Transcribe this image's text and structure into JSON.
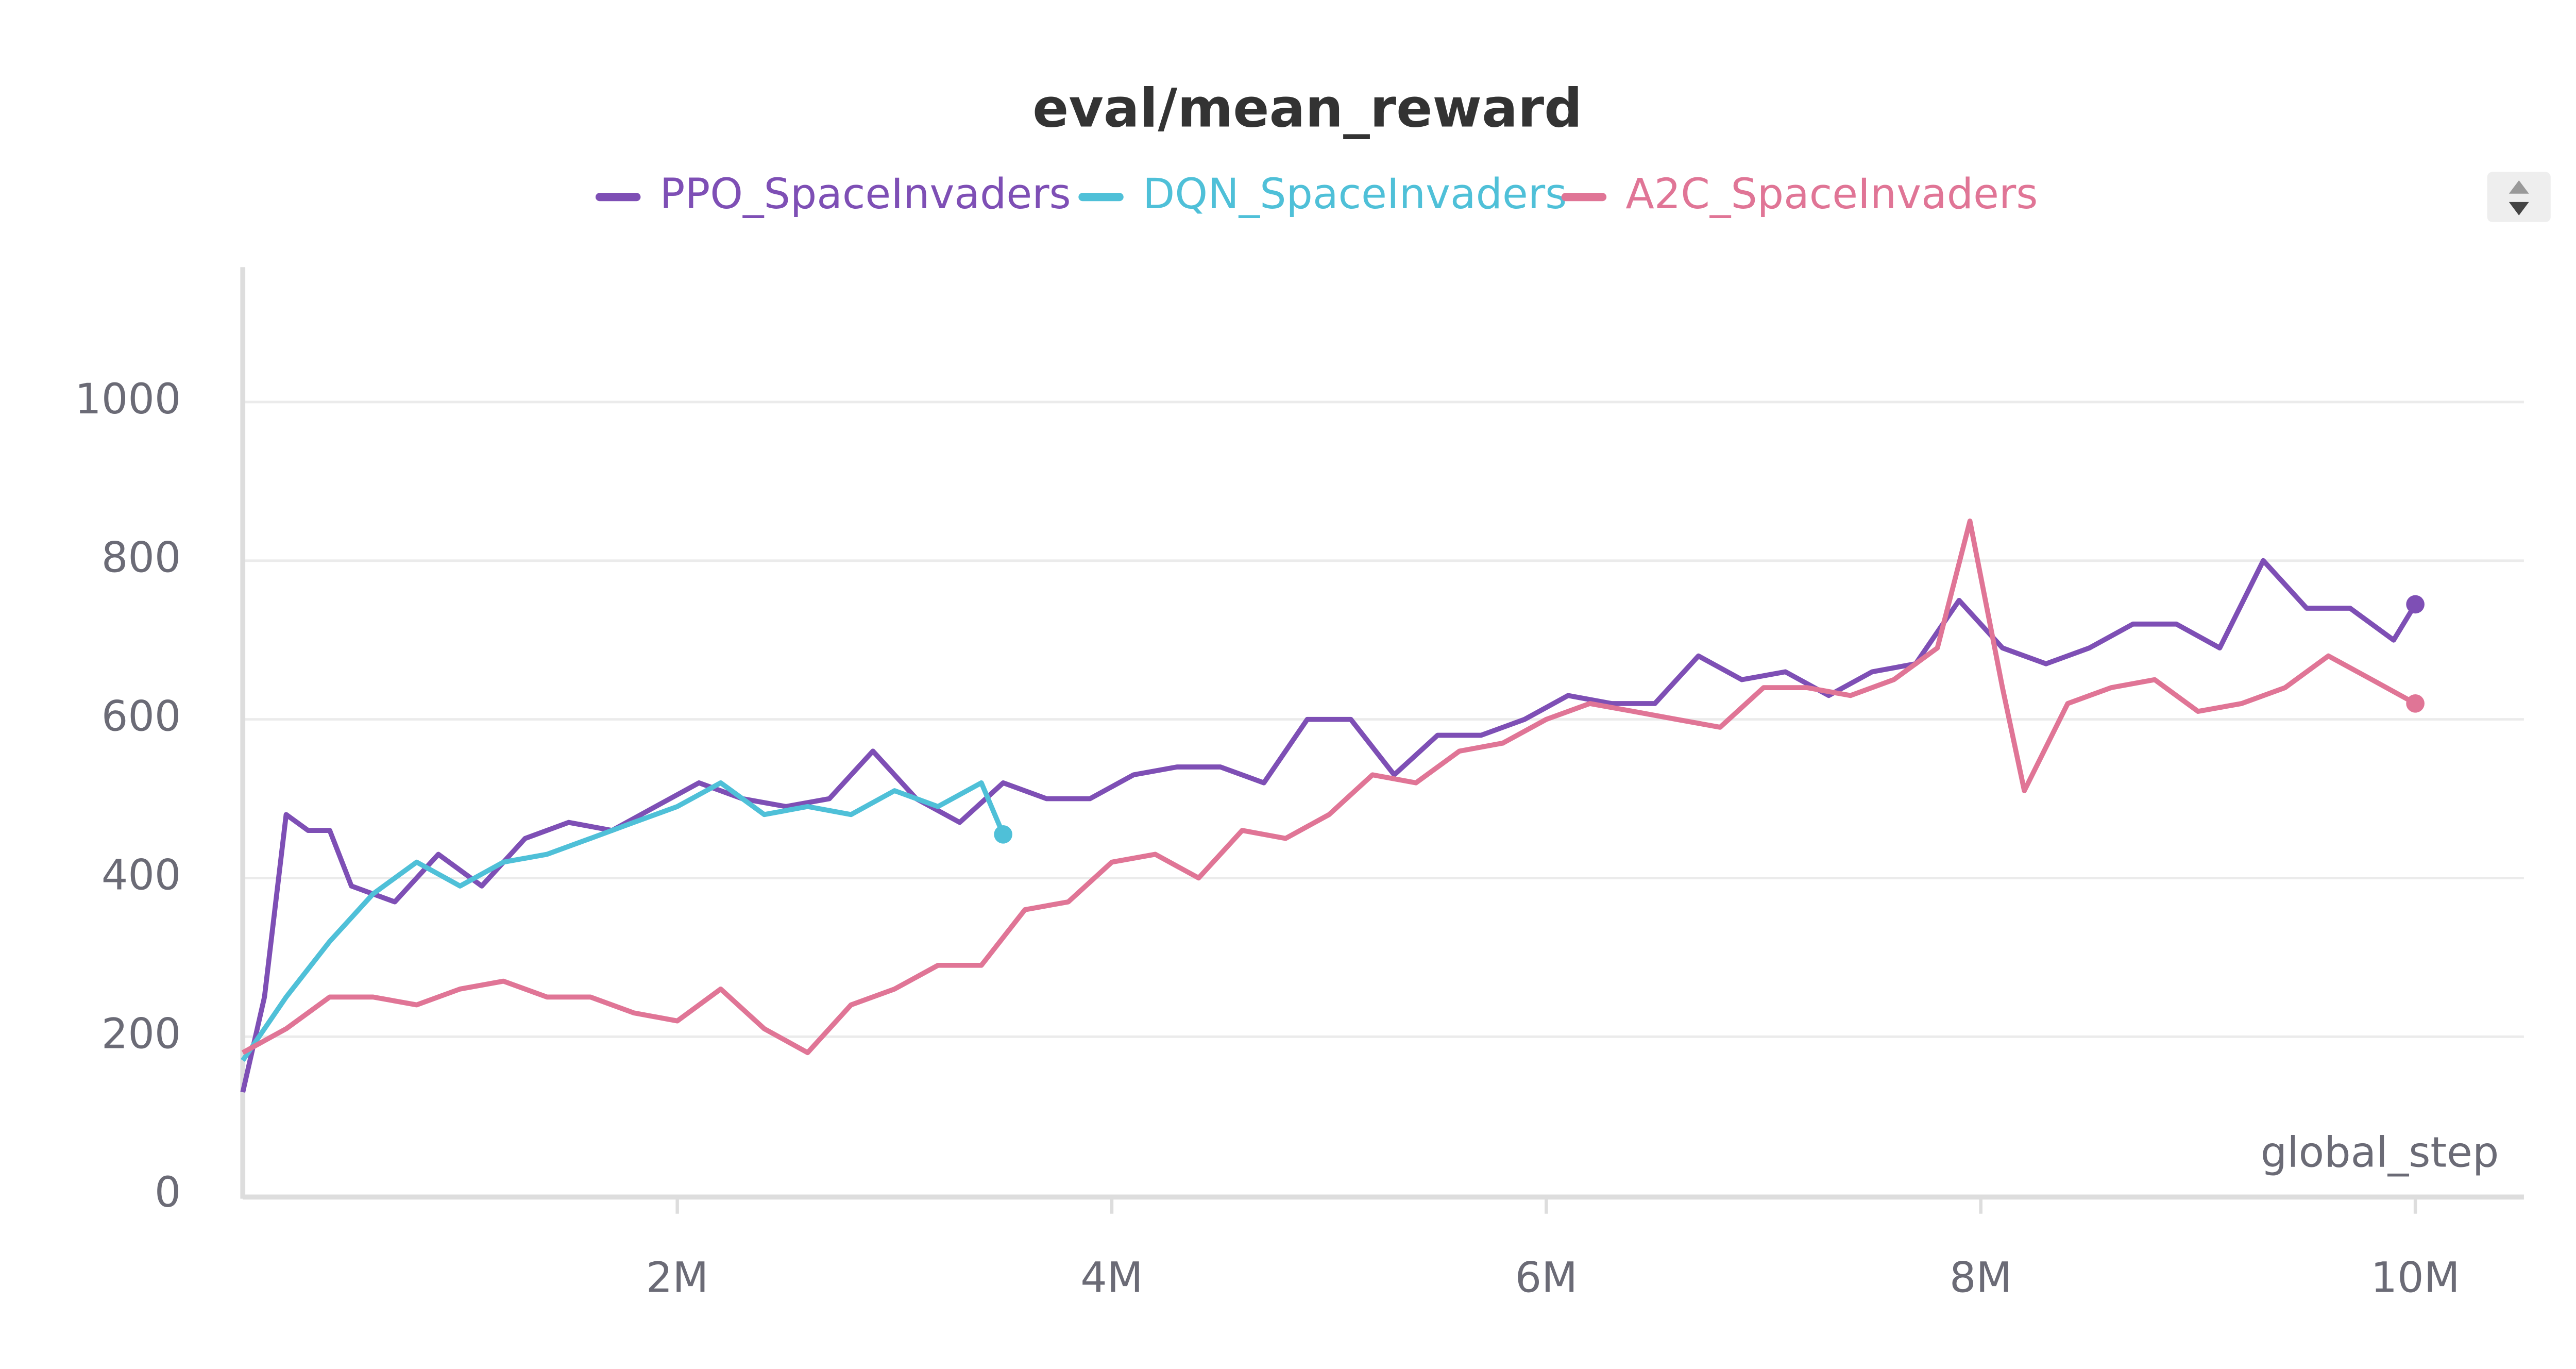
{
  "chart_data": {
    "type": "line",
    "title": "eval/mean_reward",
    "xlabel": "global_step",
    "xlim": [
      0,
      10500000
    ],
    "ylim": [
      0,
      1170
    ],
    "xticks": [
      {
        "value": 2000000,
        "label": "2M"
      },
      {
        "value": 4000000,
        "label": "4M"
      },
      {
        "value": 6000000,
        "label": "6M"
      },
      {
        "value": 8000000,
        "label": "8M"
      },
      {
        "value": 10000000,
        "label": "10M"
      }
    ],
    "yticks": [
      0,
      200,
      400,
      600,
      800,
      1000
    ],
    "grid": true,
    "series": [
      {
        "name": "PPO_SpaceInvaders",
        "color": "#7e4fb5",
        "x": [
          0,
          100000,
          200000,
          300000,
          400000,
          500000,
          700000,
          900000,
          1100000,
          1300000,
          1500000,
          1700000,
          1900000,
          2100000,
          2300000,
          2500000,
          2700000,
          2900000,
          3100000,
          3300000,
          3500000,
          3700000,
          3900000,
          4100000,
          4300000,
          4500000,
          4700000,
          4900000,
          5100000,
          5300000,
          5500000,
          5700000,
          5900000,
          6100000,
          6300000,
          6500000,
          6700000,
          6900000,
          7100000,
          7300000,
          7500000,
          7700000,
          7900000,
          8100000,
          8300000,
          8500000,
          8700000,
          8900000,
          9100000,
          9300000,
          9500000,
          9700000,
          9900000,
          10000000
        ],
        "values": [
          130,
          250,
          480,
          460,
          460,
          390,
          370,
          430,
          390,
          450,
          470,
          460,
          490,
          520,
          500,
          490,
          500,
          560,
          500,
          470,
          520,
          500,
          500,
          530,
          540,
          540,
          520,
          600,
          600,
          530,
          580,
          580,
          600,
          630,
          620,
          620,
          680,
          650,
          660,
          630,
          660,
          670,
          750,
          690,
          670,
          690,
          720,
          720,
          690,
          800,
          740,
          740,
          700,
          745
        ]
      },
      {
        "name": "DQN_SpaceInvaders",
        "color": "#4fc0d8",
        "x": [
          0,
          200000,
          400000,
          600000,
          800000,
          1000000,
          1200000,
          1400000,
          1600000,
          1800000,
          2000000,
          2200000,
          2400000,
          2600000,
          2800000,
          3000000,
          3200000,
          3400000,
          3500000
        ],
        "values": [
          170,
          250,
          320,
          380,
          420,
          390,
          420,
          430,
          450,
          470,
          490,
          520,
          480,
          490,
          480,
          510,
          490,
          520,
          455
        ]
      },
      {
        "name": "A2C_SpaceInvaders",
        "color": "#e07596",
        "x": [
          0,
          200000,
          400000,
          600000,
          800000,
          1000000,
          1200000,
          1400000,
          1600000,
          1800000,
          2000000,
          2200000,
          2400000,
          2600000,
          2800000,
          3000000,
          3200000,
          3400000,
          3600000,
          3800000,
          4000000,
          4200000,
          4400000,
          4600000,
          4800000,
          5000000,
          5200000,
          5400000,
          5600000,
          5800000,
          6000000,
          6200000,
          6400000,
          6600000,
          6800000,
          7000000,
          7200000,
          7400000,
          7600000,
          7800000,
          7950000,
          8100000,
          8200000,
          8400000,
          8600000,
          8800000,
          9000000,
          9200000,
          9400000,
          9600000,
          9800000,
          10000000
        ],
        "values": [
          180,
          210,
          250,
          250,
          240,
          260,
          270,
          250,
          250,
          230,
          220,
          260,
          210,
          180,
          240,
          260,
          290,
          290,
          360,
          370,
          420,
          430,
          400,
          460,
          450,
          480,
          530,
          520,
          560,
          570,
          600,
          620,
          610,
          600,
          590,
          640,
          640,
          630,
          650,
          690,
          850,
          640,
          510,
          620,
          640,
          650,
          610,
          620,
          640,
          680,
          650,
          620
        ]
      }
    ]
  }
}
